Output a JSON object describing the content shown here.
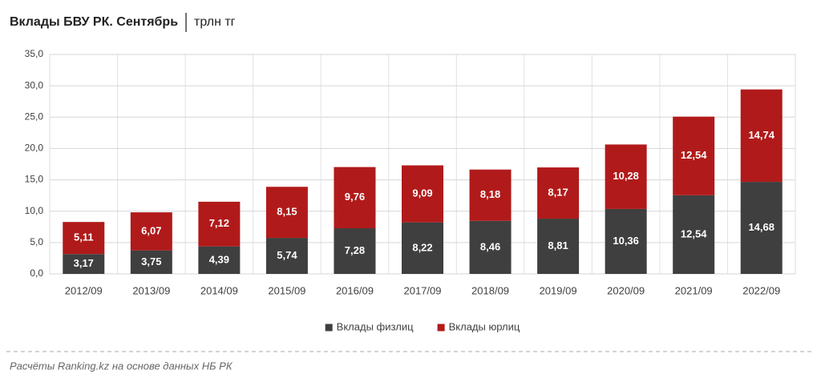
{
  "chart_data": {
    "type": "stacked-bar",
    "title": "Вклады БВУ РК. Сентябрь",
    "subtitle": "трлн тг",
    "source": "Расчёты Ranking.kz на основе данных НБ РК",
    "categories": [
      "2012/09",
      "2013/09",
      "2014/09",
      "2015/09",
      "2016/09",
      "2017/09",
      "2018/09",
      "2019/09",
      "2020/09",
      "2021/09",
      "2022/09"
    ],
    "series": [
      {
        "name": "Вклады физлиц",
        "color": "#3f3f3f",
        "values": [
          3.17,
          3.75,
          4.39,
          5.74,
          7.28,
          8.22,
          8.46,
          8.81,
          10.36,
          12.54,
          14.68
        ],
        "value_labels": [
          "3,17",
          "3,75",
          "4,39",
          "5,74",
          "7,28",
          "8,22",
          "8,46",
          "8,81",
          "10,36",
          "12,54",
          "14,68"
        ]
      },
      {
        "name": "Вклады юрлиц",
        "color": "#b11a1a",
        "values": [
          5.11,
          6.07,
          7.12,
          8.15,
          9.76,
          9.09,
          8.18,
          8.17,
          10.28,
          12.54,
          14.74
        ],
        "value_labels": [
          "5,11",
          "6,07",
          "7,12",
          "8,15",
          "9,76",
          "9,09",
          "8,18",
          "8,17",
          "10,28",
          "12,54",
          "14,74"
        ]
      }
    ],
    "ylim": [
      0,
      35
    ],
    "yticks": [
      {
        "value": 0,
        "label": "0,0"
      },
      {
        "value": 5,
        "label": "5,0"
      },
      {
        "value": 10,
        "label": "10,0"
      },
      {
        "value": 15,
        "label": "15,0"
      },
      {
        "value": 20,
        "label": "20,0"
      },
      {
        "value": 25,
        "label": "25,0"
      },
      {
        "value": 30,
        "label": "30,0"
      },
      {
        "value": 35,
        "label": "35,0"
      }
    ],
    "grid": true,
    "legend": "bottom"
  }
}
